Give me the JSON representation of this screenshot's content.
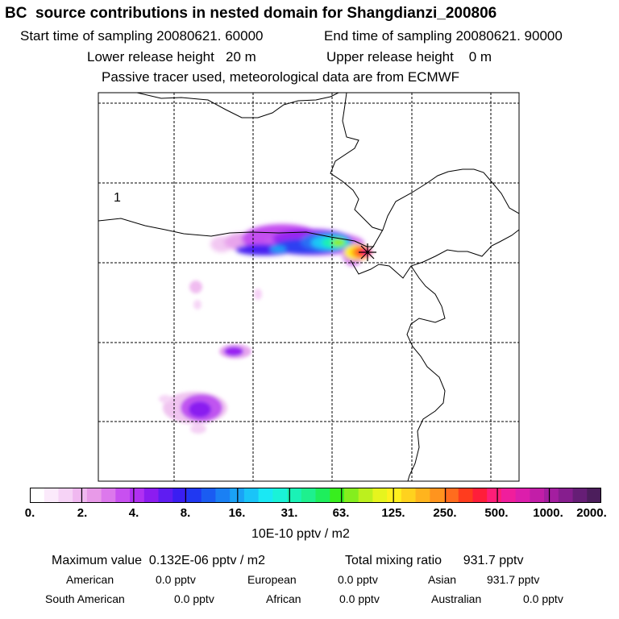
{
  "header": {
    "title": "BC  source contributions in nested domain for Shangdianzi_200806",
    "start_time": "Start time of sampling 20080621. 60000",
    "end_time": "End time of sampling 20080621. 90000",
    "lower_release": "Lower release height   20 m",
    "upper_release": "Upper release height    0 m",
    "passive_note": "Passive tracer used, meteorological data are from ECMWF"
  },
  "map": {
    "region_label": "1",
    "receptor_marker": "receptor-star-icon"
  },
  "colorbar": {
    "colors": [
      "#ffffff",
      "#fbeafb",
      "#f6d3f6",
      "#f0b8f0",
      "#e89ae8",
      "#dc78ec",
      "#c850f0",
      "#b030f2",
      "#8c1cf0",
      "#5f1cf2",
      "#3a1ef2",
      "#2038f2",
      "#1a5cf2",
      "#1a80f4",
      "#1aa2f6",
      "#1ac4f8",
      "#1ae8f4",
      "#1af2d8",
      "#1af2b6",
      "#1ef08e",
      "#1eee5c",
      "#38ee1e",
      "#84ee1e",
      "#bcf01e",
      "#e6f41e",
      "#fff01e",
      "#ffd21e",
      "#ffb41e",
      "#ff941e",
      "#ff6c1e",
      "#ff3c1e",
      "#ff1e3a",
      "#ff1e78",
      "#f01e9c",
      "#dc1eac",
      "#c21ea8",
      "#a41ea0",
      "#861e8e",
      "#661e76",
      "#4c1e5c"
    ],
    "tick_labels": [
      "0.",
      "2.",
      "4.",
      "8.",
      "16.",
      "31.",
      "63.",
      "125.",
      "250.",
      "500.",
      "1000.",
      "2000."
    ],
    "unit_label": "10E-10 pptv / m2"
  },
  "summary": {
    "maximum_value": "Maximum value  0.132E-06 pptv / m2",
    "total_mixing": "Total mixing ratio      931.7 pptv",
    "american": {
      "label": "American",
      "value": "0.0 pptv"
    },
    "european": {
      "label": "European",
      "value": "0.0 pptv"
    },
    "asian": {
      "label": "Asian",
      "value": "931.7 pptv"
    },
    "south_american": {
      "label": "South American",
      "value": "0.0 pptv"
    },
    "african": {
      "label": "African",
      "value": "0.0 pptv"
    },
    "australian": {
      "label": "Australian",
      "value": "0.0 pptv"
    }
  }
}
